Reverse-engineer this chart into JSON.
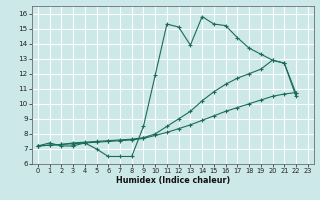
{
  "xlabel": "Humidex (Indice chaleur)",
  "bg_color": "#cce8e8",
  "grid_color": "#ffffff",
  "line_color": "#1a6b5a",
  "xlim": [
    -0.5,
    23.5
  ],
  "ylim": [
    6.0,
    16.5
  ],
  "xticks": [
    0,
    1,
    2,
    3,
    4,
    5,
    6,
    7,
    8,
    9,
    10,
    11,
    12,
    13,
    14,
    15,
    16,
    17,
    18,
    19,
    20,
    21,
    22,
    23
  ],
  "yticks": [
    6,
    7,
    8,
    9,
    10,
    11,
    12,
    13,
    14,
    15,
    16
  ],
  "series": [
    {
      "x": [
        0,
        1,
        2,
        3,
        4,
        5,
        6,
        7,
        8,
        9,
        10,
        11,
        12,
        13,
        14,
        15,
        16,
        17,
        18,
        19,
        20,
        21,
        22
      ],
      "y": [
        7.2,
        7.4,
        7.2,
        7.2,
        7.4,
        7.0,
        6.5,
        6.5,
        6.5,
        8.5,
        11.9,
        15.3,
        15.1,
        13.9,
        15.8,
        15.3,
        15.2,
        14.4,
        13.7,
        13.3,
        12.9,
        12.7,
        10.5
      ]
    },
    {
      "x": [
        0,
        1,
        2,
        3,
        4,
        5,
        6,
        7,
        8,
        9,
        10,
        11,
        12,
        13,
        14,
        15,
        16,
        17,
        18,
        19,
        20,
        21,
        22
      ],
      "y": [
        7.2,
        7.25,
        7.3,
        7.4,
        7.45,
        7.5,
        7.55,
        7.6,
        7.65,
        7.75,
        8.0,
        8.5,
        9.0,
        9.5,
        10.2,
        10.8,
        11.3,
        11.7,
        12.0,
        12.3,
        12.9,
        12.7,
        10.7
      ]
    },
    {
      "x": [
        0,
        1,
        2,
        3,
        4,
        5,
        6,
        7,
        8,
        9,
        10,
        11,
        12,
        13,
        14,
        15,
        16,
        17,
        18,
        19,
        20,
        21,
        22
      ],
      "y": [
        7.2,
        7.25,
        7.3,
        7.35,
        7.4,
        7.45,
        7.5,
        7.55,
        7.6,
        7.7,
        7.9,
        8.1,
        8.35,
        8.6,
        8.9,
        9.2,
        9.5,
        9.75,
        10.0,
        10.25,
        10.5,
        10.65,
        10.75
      ]
    }
  ]
}
